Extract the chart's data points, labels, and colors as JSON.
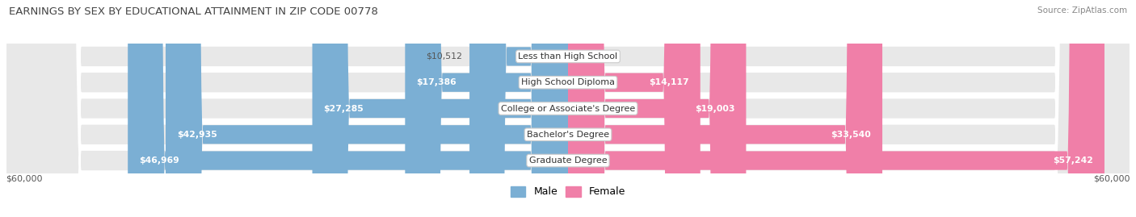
{
  "title": "EARNINGS BY SEX BY EDUCATIONAL ATTAINMENT IN ZIP CODE 00778",
  "source": "Source: ZipAtlas.com",
  "categories": [
    "Less than High School",
    "High School Diploma",
    "College or Associate's Degree",
    "Bachelor's Degree",
    "Graduate Degree"
  ],
  "male_values": [
    10512,
    17386,
    27285,
    42935,
    46969
  ],
  "female_values": [
    0,
    14117,
    19003,
    33540,
    57242
  ],
  "male_color": "#7bafd4",
  "female_color": "#f07fa8",
  "max_val": 60000,
  "background_color": "#ffffff",
  "row_bg_color": "#e8e8e8",
  "label_dark": "#555555",
  "label_white": "#ffffff"
}
